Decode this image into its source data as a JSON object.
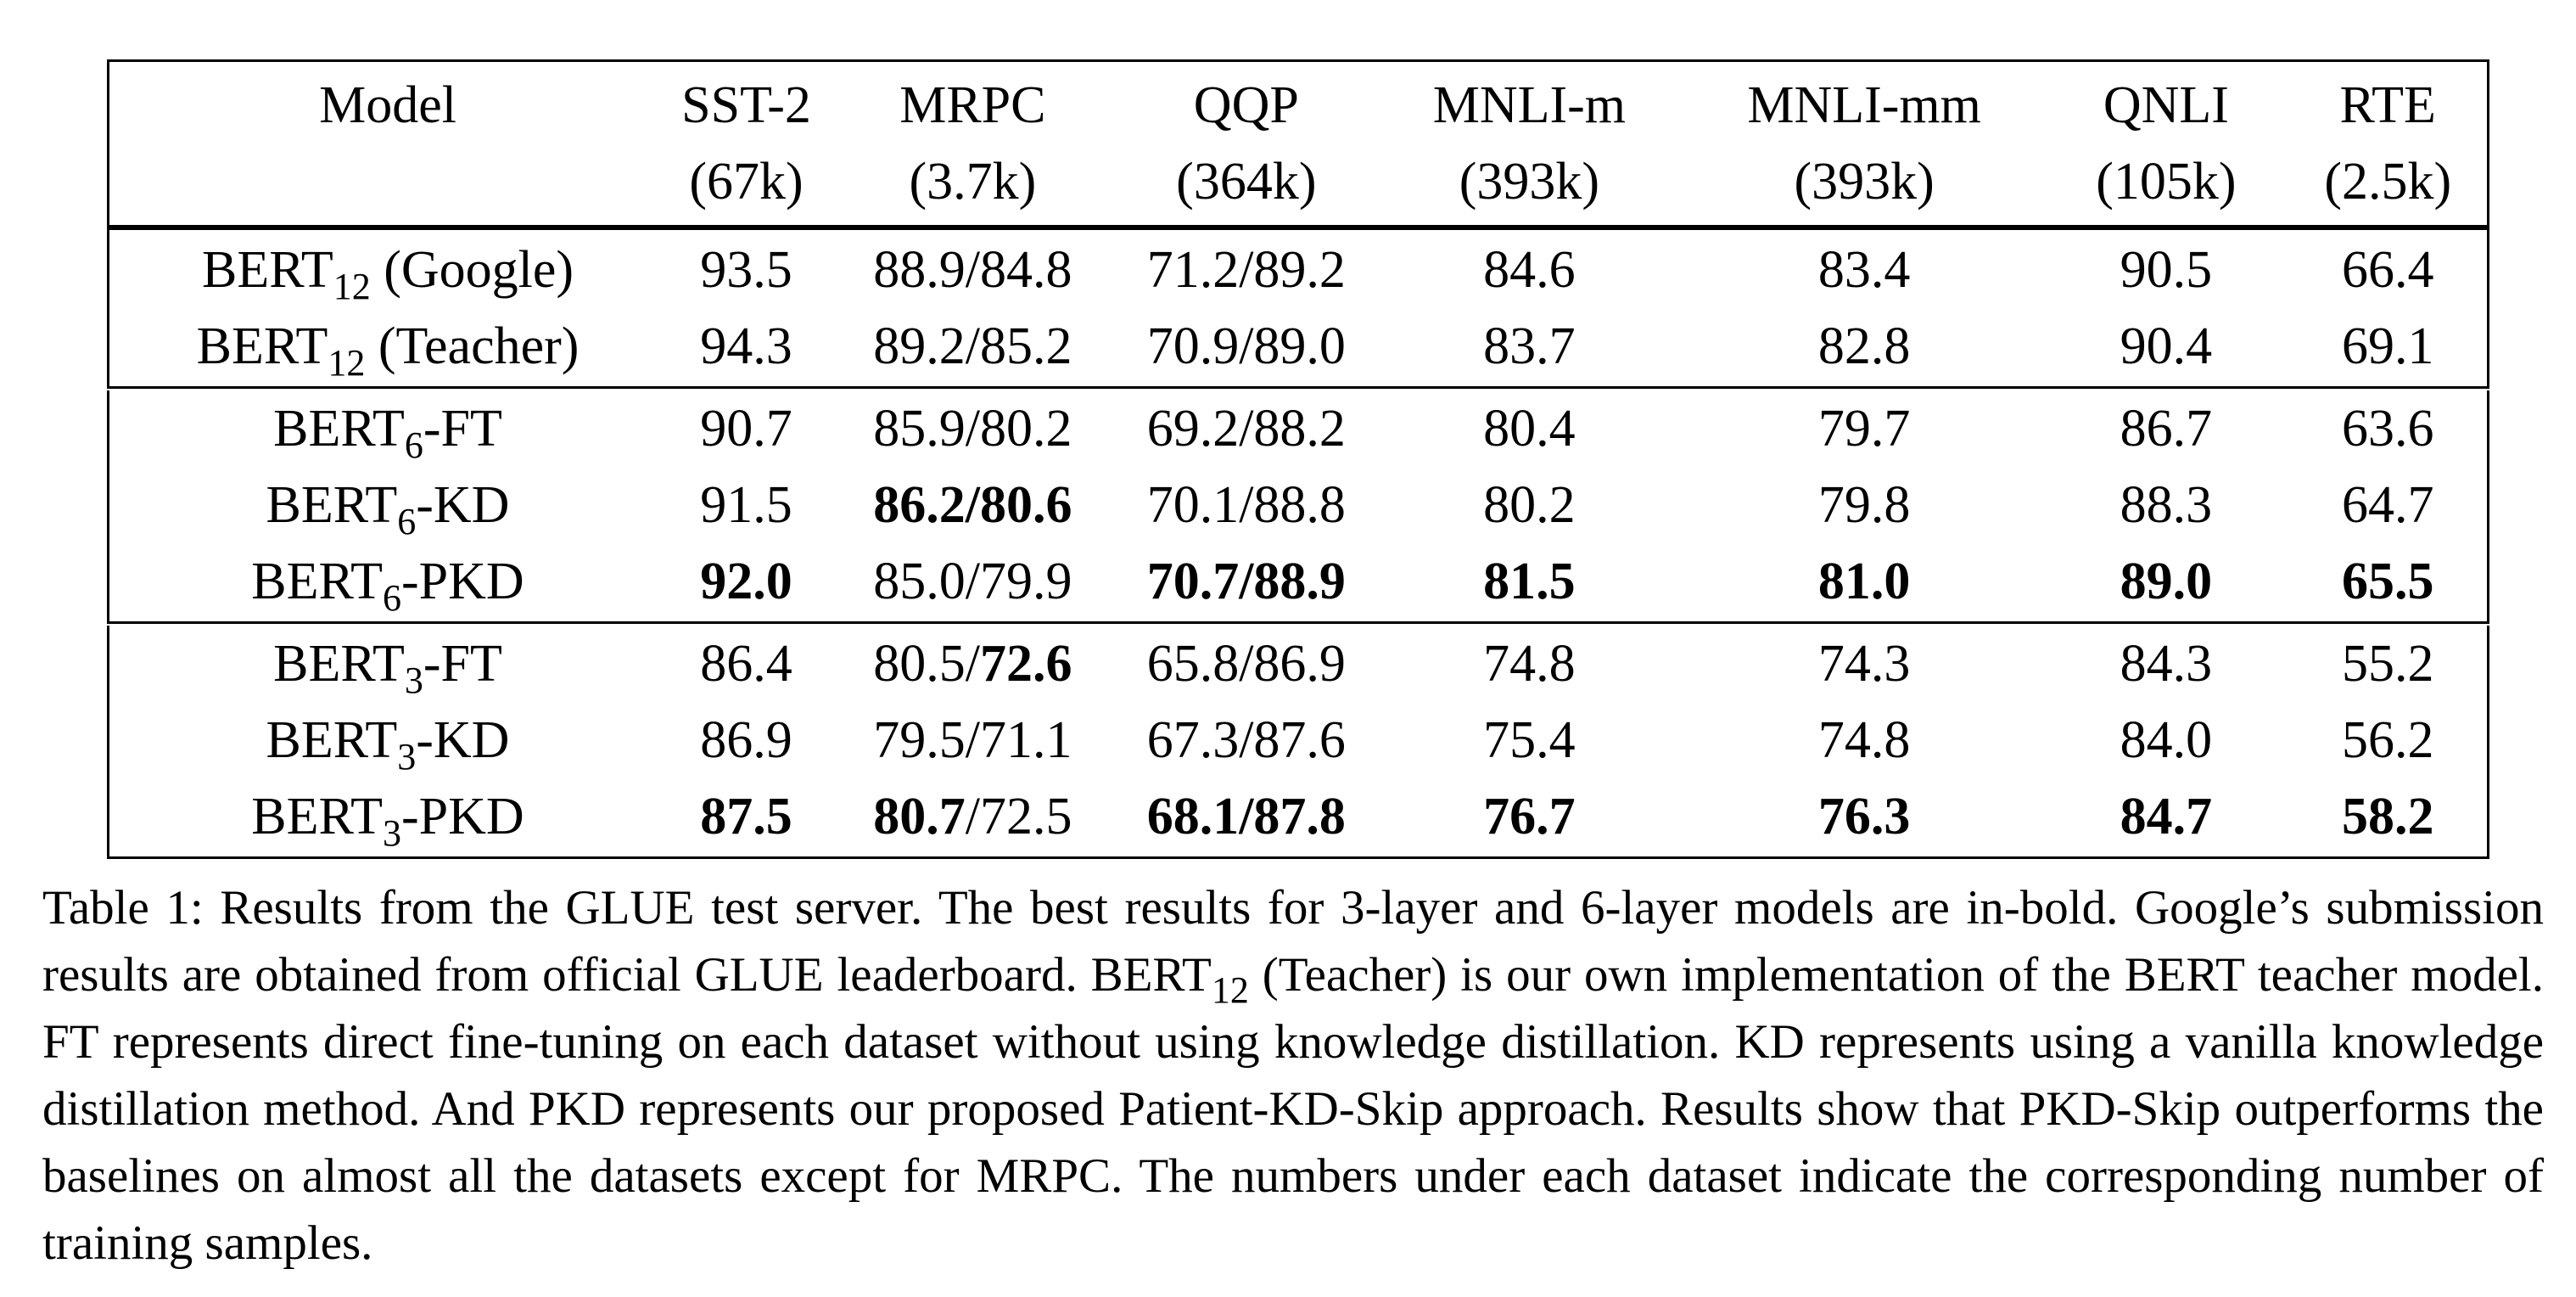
{
  "table": {
    "headers": [
      {
        "name": "Model",
        "size": ""
      },
      {
        "name": "SST-2",
        "size": "(67k)"
      },
      {
        "name": "MRPC",
        "size": "(3.7k)"
      },
      {
        "name": "QQP",
        "size": "(364k)"
      },
      {
        "name": "MNLI-m",
        "size": "(393k)"
      },
      {
        "name": "MNLI-mm",
        "size": "(393k)"
      },
      {
        "name": "QNLI",
        "size": "(105k)"
      },
      {
        "name": "RTE",
        "size": "(2.5k)"
      }
    ],
    "groups": [
      {
        "rows": [
          {
            "model_base": "BERT",
            "model_sub": "12",
            "model_suffix": " (Google)",
            "cells": [
              {
                "t": "93.5"
              },
              {
                "t": "88.9/84.8"
              },
              {
                "t": "71.2/89.2"
              },
              {
                "t": "84.6"
              },
              {
                "t": "83.4"
              },
              {
                "t": "90.5"
              },
              {
                "t": "66.4"
              }
            ]
          },
          {
            "model_base": "BERT",
            "model_sub": "12",
            "model_suffix": " (Teacher)",
            "cells": [
              {
                "t": "94.3"
              },
              {
                "t": "89.2/85.2"
              },
              {
                "t": "70.9/89.0"
              },
              {
                "t": "83.7"
              },
              {
                "t": "82.8"
              },
              {
                "t": "90.4"
              },
              {
                "t": "69.1"
              }
            ]
          }
        ]
      },
      {
        "rows": [
          {
            "model_base": "BERT",
            "model_sub": "6",
            "model_suffix": "-FT",
            "cells": [
              {
                "t": "90.7"
              },
              {
                "t": "85.9/80.2"
              },
              {
                "t": "69.2/88.2"
              },
              {
                "t": "80.4"
              },
              {
                "t": "79.7"
              },
              {
                "t": "86.7"
              },
              {
                "t": "63.6"
              }
            ]
          },
          {
            "model_base": "BERT",
            "model_sub": "6",
            "model_suffix": "-KD",
            "cells": [
              {
                "t": "91.5"
              },
              {
                "t": "86.2/80.6",
                "bold": true
              },
              {
                "t": "70.1/88.8"
              },
              {
                "t": "80.2"
              },
              {
                "t": "79.8"
              },
              {
                "t": "88.3"
              },
              {
                "t": "64.7"
              }
            ]
          },
          {
            "model_base": "BERT",
            "model_sub": "6",
            "model_suffix": "-PKD",
            "cells": [
              {
                "t": "92.0",
                "bold": true
              },
              {
                "t": "85.0/79.9"
              },
              {
                "t": "70.7/88.9",
                "bold": true
              },
              {
                "t": "81.5",
                "bold": true
              },
              {
                "t": "81.0",
                "bold": true
              },
              {
                "t": "89.0",
                "bold": true
              },
              {
                "t": "65.5",
                "bold": true
              }
            ]
          }
        ]
      },
      {
        "rows": [
          {
            "model_base": "BERT",
            "model_sub": "3",
            "model_suffix": "-FT",
            "cells": [
              {
                "t": "86.4"
              },
              {
                "parts": [
                  {
                    "t": "80.5/"
                  },
                  {
                    "t": "72.6",
                    "bold": true
                  }
                ]
              },
              {
                "t": "65.8/86.9"
              },
              {
                "t": "74.8"
              },
              {
                "t": "74.3"
              },
              {
                "t": "84.3"
              },
              {
                "t": "55.2"
              }
            ]
          },
          {
            "model_base": "BERT",
            "model_sub": "3",
            "model_suffix": "-KD",
            "cells": [
              {
                "t": "86.9"
              },
              {
                "t": "79.5/71.1"
              },
              {
                "t": "67.3/87.6"
              },
              {
                "t": "75.4"
              },
              {
                "t": "74.8"
              },
              {
                "t": "84.0"
              },
              {
                "t": "56.2"
              }
            ]
          },
          {
            "model_base": "BERT",
            "model_sub": "3",
            "model_suffix": "-PKD",
            "cells": [
              {
                "t": "87.5",
                "bold": true
              },
              {
                "parts": [
                  {
                    "t": "80.7",
                    "bold": true
                  },
                  {
                    "t": "/72.5"
                  }
                ]
              },
              {
                "t": "68.1/87.8",
                "bold": true
              },
              {
                "t": "76.7",
                "bold": true
              },
              {
                "t": "76.3",
                "bold": true
              },
              {
                "t": "84.7",
                "bold": true
              },
              {
                "t": "58.2",
                "bold": true
              }
            ]
          }
        ]
      }
    ]
  },
  "caption": {
    "part1": "Table 1: Results from the GLUE test server. The best results for 3-layer and 6-layer models are in-bold. Google’s submission results are obtained from official GLUE leaderboard. ",
    "bert_base": "BERT",
    "bert_sub": "12",
    "part2": " (Teacher) is our own implementation of the BERT teacher model. FT represents direct fine-tuning on each dataset without using knowledge distillation. KD represents using a vanilla knowledge distillation method. And PKD represents our proposed Patient-KD-Skip approach. Results show that PKD-Skip outperforms the baselines on almost all the datasets except for MRPC. The numbers under each dataset indicate the corresponding number of training samples."
  }
}
